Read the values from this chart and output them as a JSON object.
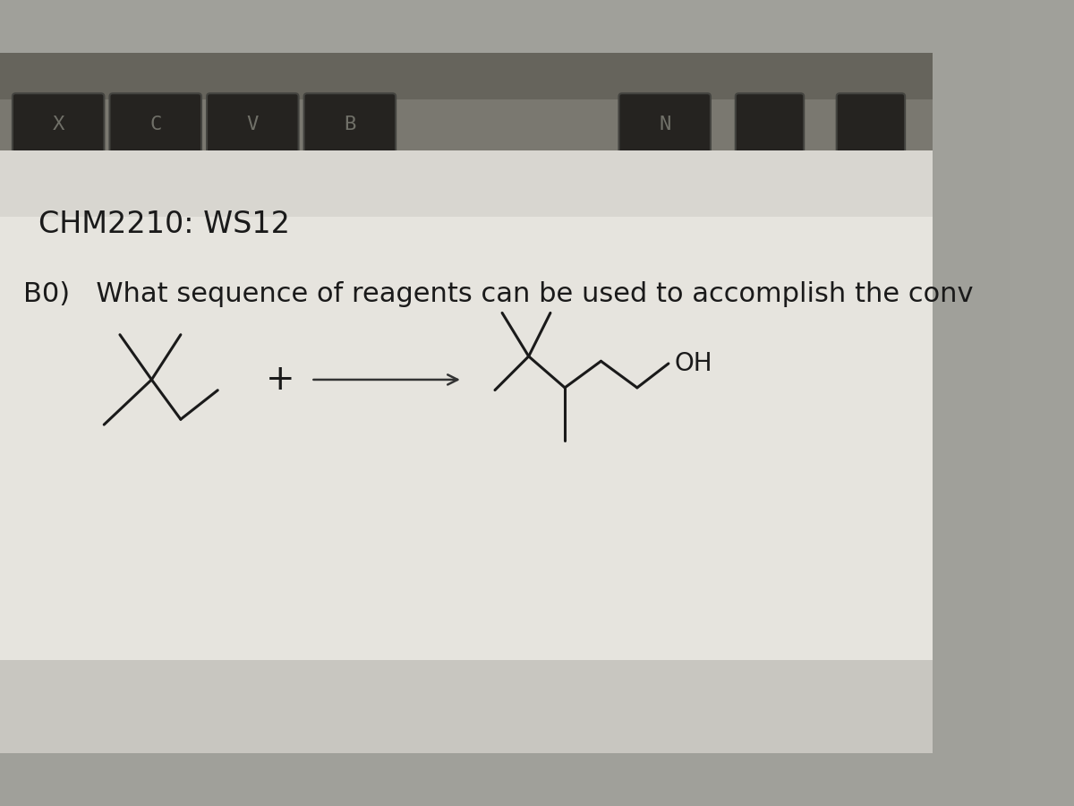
{
  "title": "CHM2210: WS12",
  "question": "B0)   What sequence of reagents can be used to accomplish the conv",
  "text_color": "#1a1a1a",
  "bond_color": "#1a1a1a",
  "title_fontsize": 24,
  "question_fontsize": 22,
  "keyboard_bg": "#8a8580",
  "key_color": "#222018",
  "key_labels": [
    "X",
    "C",
    "V",
    "B",
    "N"
  ],
  "paper_color": "#e8e6e0",
  "paper_white": "#f0eeea",
  "bottom_shadow": "#c8c4bc",
  "arrow_color": "#666666"
}
